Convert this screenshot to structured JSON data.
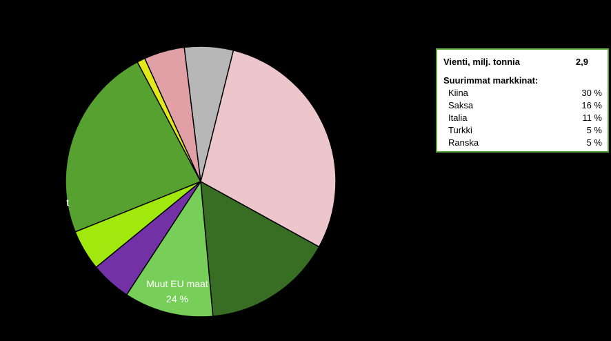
{
  "chart_data": {
    "type": "pie",
    "slices": [
      {
        "label": "",
        "value": 30,
        "color": "#ecc6cb"
      },
      {
        "label": "",
        "value": 16,
        "color": "#376e24"
      },
      {
        "label": "",
        "value": 11,
        "color": "#77ce58"
      },
      {
        "label": "",
        "value": 5,
        "color": "#7331a6"
      },
      {
        "label": "",
        "value": 5,
        "color": "#a1e80e"
      },
      {
        "label": "Muut  EU maat",
        "value": 24,
        "value_label": "24 %",
        "color": "#57a130"
      },
      {
        "label": "",
        "value": 1,
        "color": "#e2e81a"
      },
      {
        "label": "",
        "value": 5,
        "color": "#e0a0a6"
      },
      {
        "label": "",
        "value": 6,
        "color": "#b7b7b7",
        "visible_label_fragment": "t"
      }
    ],
    "start_angle_deg": 284
  },
  "info_box": {
    "export_label": "Vienti, milj. tonnia",
    "export_value": "2,9",
    "markets_heading": "Suurimmat markkinat:",
    "markets": [
      {
        "name": "Kiina",
        "share": "30 %"
      },
      {
        "name": "Saksa",
        "share": "16 %"
      },
      {
        "name": "Italia",
        "share": "11 %"
      },
      {
        "name": "Turkki",
        "share": "5 %"
      },
      {
        "name": "Ranska",
        "share": "5 %"
      }
    ],
    "border_color": "#5aa33a"
  }
}
